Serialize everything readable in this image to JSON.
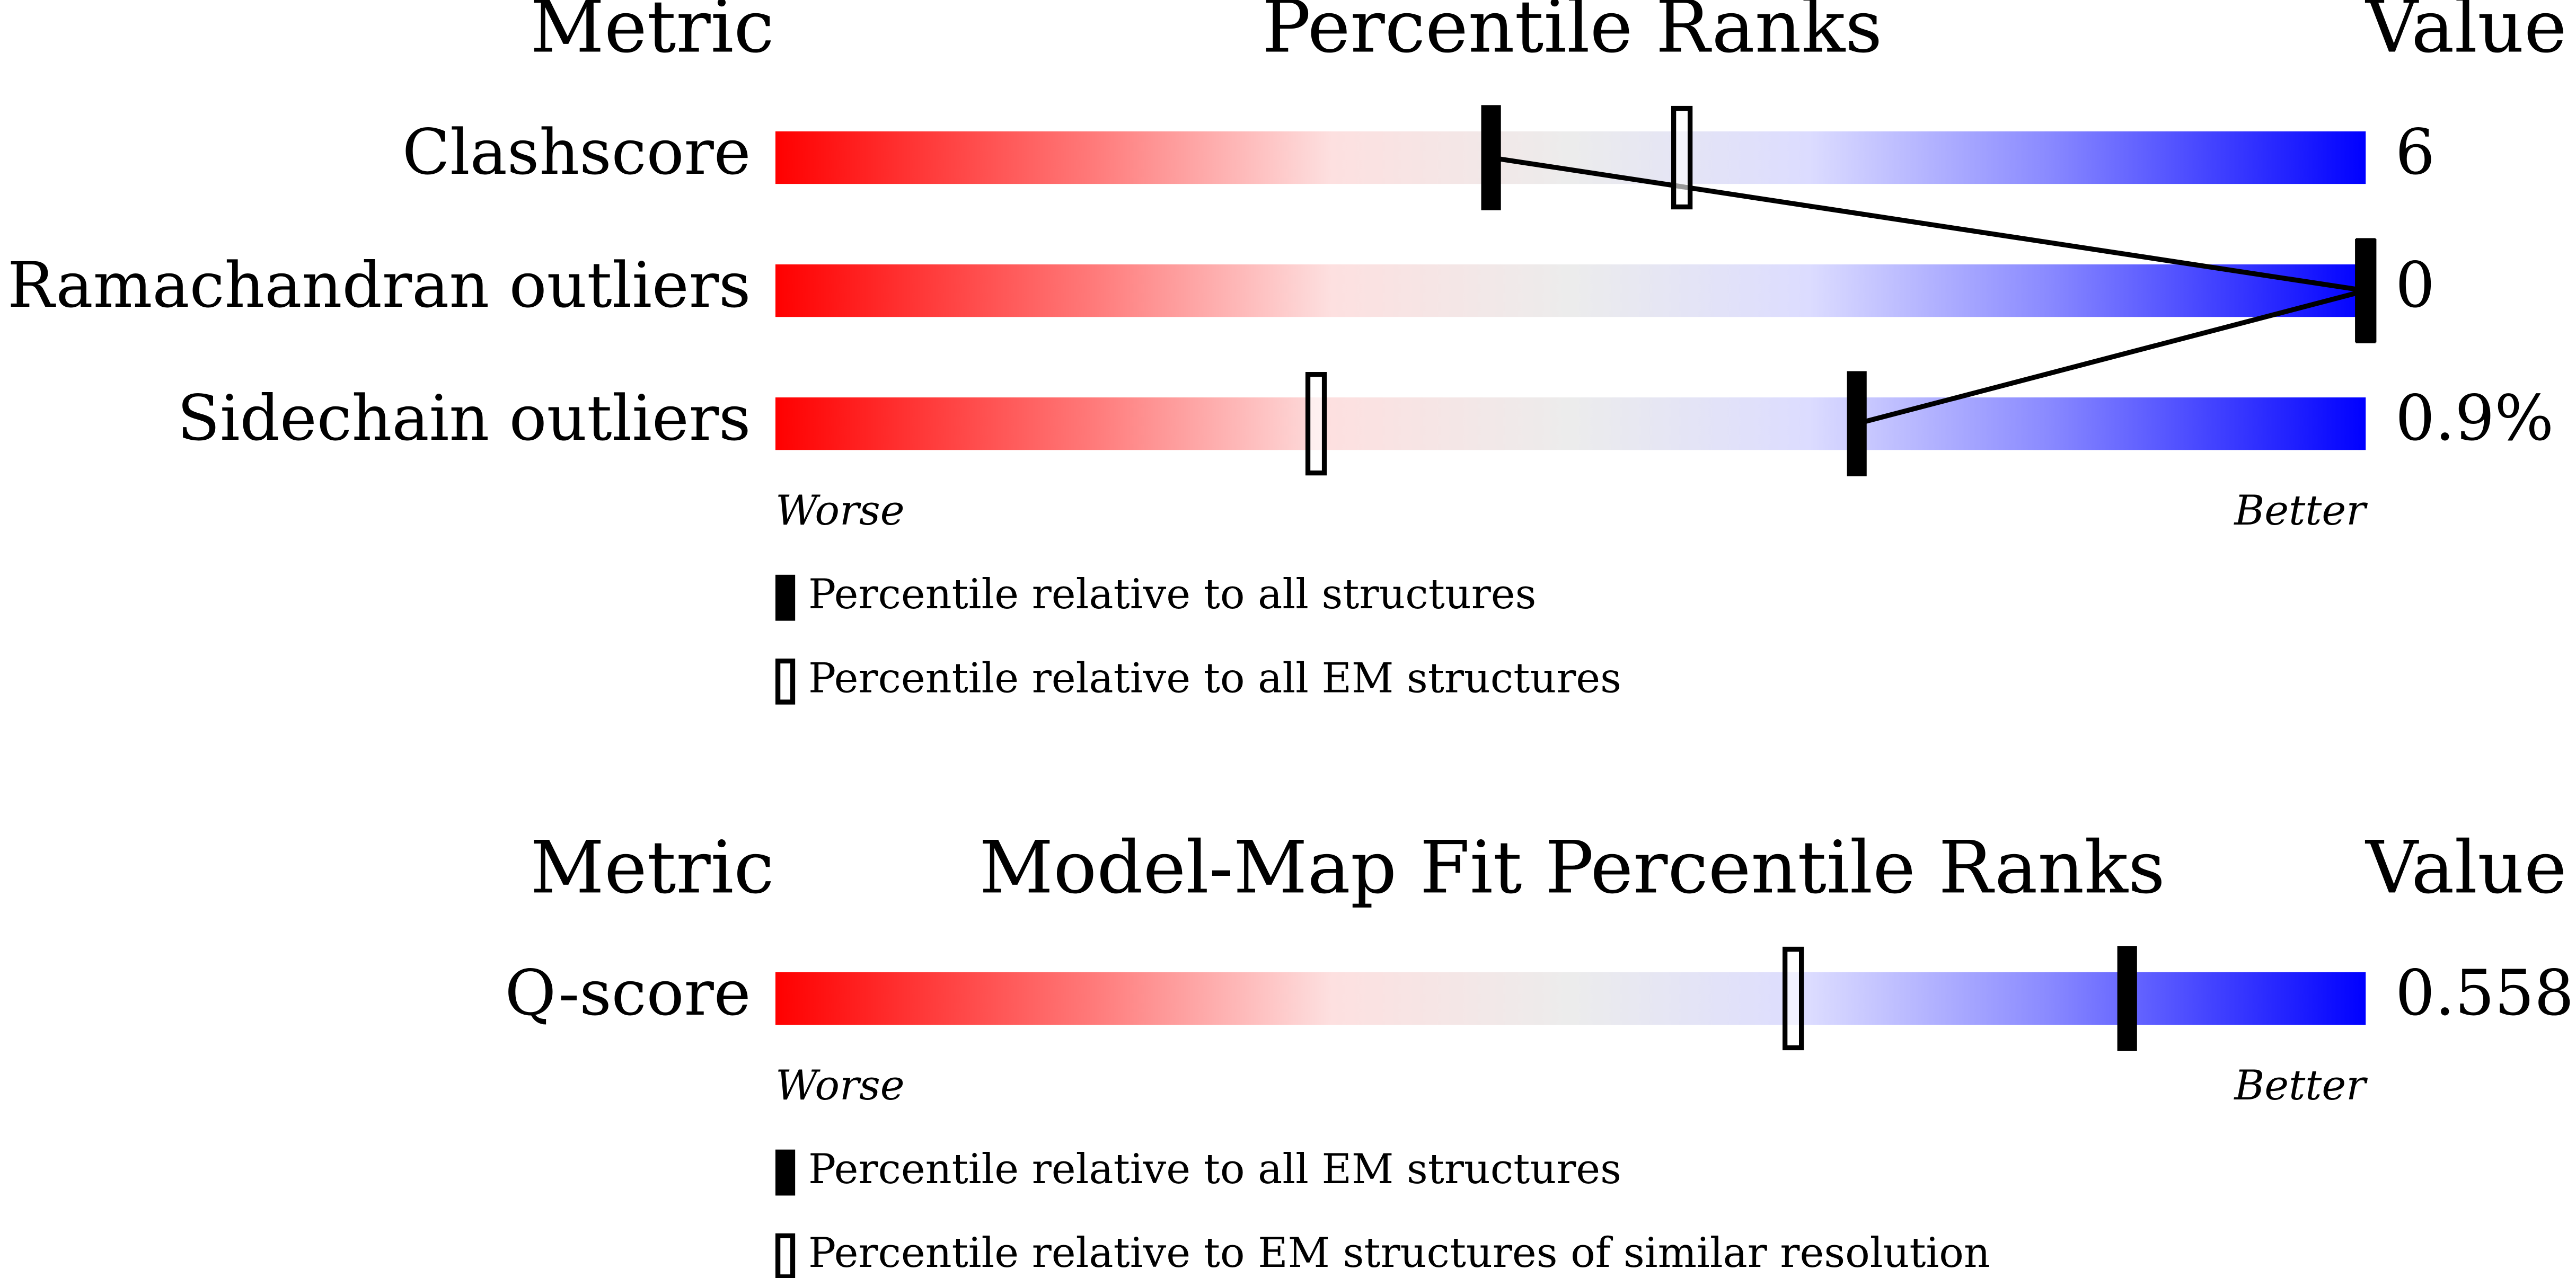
{
  "chart_data": [
    {
      "type": "slider",
      "metric_header": "Metric",
      "title": "Percentile Ranks",
      "value_header": "Value",
      "categories": [
        "Clashscore",
        "Ramachandran outliers",
        "Sidechain outliers"
      ],
      "metric_values": [
        "6",
        "0",
        "0.9%"
      ],
      "series": [
        {
          "name": "Percentile relative to all structures",
          "color": "#000000",
          "style": "filled",
          "values": [
            45,
            100,
            68
          ]
        },
        {
          "name": "Percentile relative to all EM structures",
          "color": "#000000",
          "style": "open",
          "values": [
            57,
            100,
            34
          ]
        }
      ],
      "xlim": [
        0,
        100
      ],
      "worse_label": "Worse",
      "better_label": "Better"
    },
    {
      "type": "slider",
      "metric_header": "Metric",
      "title": "Model-Map Fit Percentile Ranks",
      "value_header": "Value",
      "categories": [
        "Q-score"
      ],
      "metric_values": [
        "0.558"
      ],
      "series": [
        {
          "name": "Percentile relative to all EM structures",
          "color": "#000000",
          "style": "filled",
          "values": [
            85
          ]
        },
        {
          "name": "Percentile relative to EM structures of similar resolution",
          "color": "#000000",
          "style": "open",
          "values": [
            64
          ]
        }
      ],
      "xlim": [
        0,
        100
      ],
      "worse_label": "Worse",
      "better_label": "Better"
    }
  ]
}
